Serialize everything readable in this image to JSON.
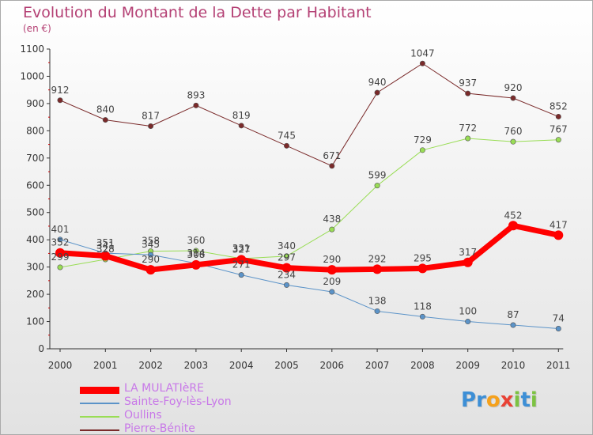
{
  "chart_data": {
    "type": "line",
    "title": "Evolution du Montant de la Dette par Habitant",
    "subtitle": "(en €)",
    "categories": [
      "2000",
      "2001",
      "2002",
      "2003",
      "2004",
      "2005",
      "2006",
      "2007",
      "2008",
      "2009",
      "2010",
      "2011"
    ],
    "ylim": [
      0,
      1100
    ],
    "yticks": [
      0,
      100,
      200,
      300,
      400,
      500,
      600,
      700,
      800,
      900,
      1000,
      1100
    ],
    "grid": false,
    "legend_position": "bottom-left",
    "series": [
      {
        "name": "LA MULATIèRE",
        "color": "#ff0000",
        "width": 7,
        "values": [
          352,
          341,
          290,
          308,
          327,
          297,
          290,
          292,
          295,
          317,
          452,
          417
        ]
      },
      {
        "name": "Sainte-Foy-lès-Lyon",
        "color": "#5b93c8",
        "width": 1,
        "values": [
          401,
          351,
          345,
          314,
          271,
          234,
          209,
          138,
          118,
          100,
          87,
          74
        ]
      },
      {
        "name": "Oullins",
        "color": "#99dd55",
        "width": 1,
        "values": [
          299,
          328,
          358,
          360,
          331,
          340,
          438,
          599,
          729,
          772,
          760,
          767
        ]
      },
      {
        "name": "Pierre-Bénite",
        "color": "#7a2a2a",
        "width": 1,
        "values": [
          912,
          840,
          817,
          893,
          819,
          745,
          671,
          940,
          1047,
          937,
          920,
          852
        ]
      }
    ]
  },
  "brand": {
    "letters": [
      {
        "char": "P",
        "color": "#3d8fd6"
      },
      {
        "char": "r",
        "color": "#3d8fd6"
      },
      {
        "char": "o",
        "color": "#f5a11c"
      },
      {
        "char": "x",
        "color": "#e94235"
      },
      {
        "char": "i",
        "color": "#7cc242"
      },
      {
        "char": "t",
        "color": "#3d8fd6"
      },
      {
        "char": "i",
        "color": "#7cc242"
      }
    ]
  }
}
